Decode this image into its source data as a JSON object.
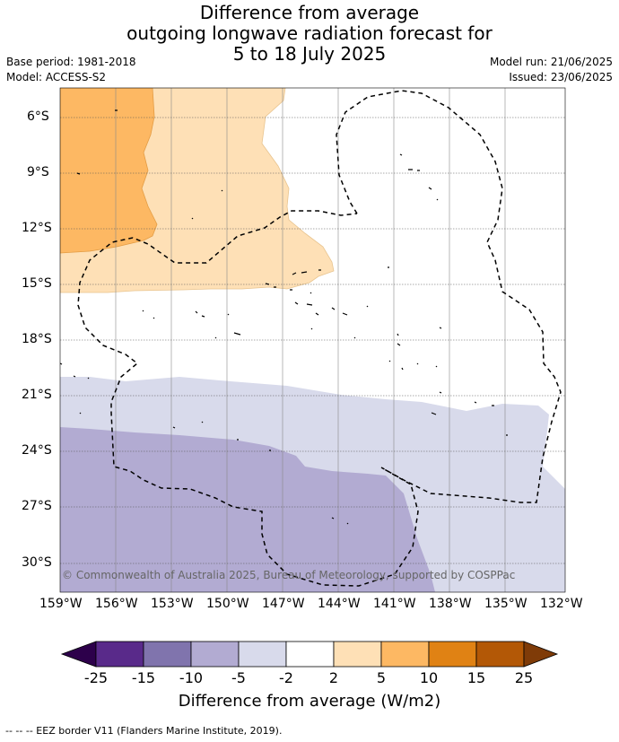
{
  "title": {
    "line1": "Difference from average",
    "line2": "outgoing longwave radiation forecast for",
    "line3": "5 to 18 July 2025"
  },
  "meta": {
    "base_period": "Base period: 1981-2018",
    "model": "Model: ACCESS-S2",
    "model_run": "Model run: 21/06/2025",
    "issued": "Issued: 23/06/2025"
  },
  "map": {
    "lat_labels": [
      "6°S",
      "9°S",
      "12°S",
      "15°S",
      "18°S",
      "21°S",
      "24°S",
      "27°S",
      "30°S"
    ],
    "lon_labels": [
      "159°W",
      "156°W",
      "153°W",
      "150°W",
      "147°W",
      "144°W",
      "141°W",
      "138°W",
      "135°W",
      "132°W"
    ],
    "copyright": "© Commonwealth of Australia 2025, Bureau of Meteorology, supported by COSPPac"
  },
  "colorbar": {
    "labels": [
      "-25",
      "-15",
      "-10",
      "-5",
      "-2",
      "2",
      "5",
      "10",
      "15",
      "25"
    ],
    "colors": [
      "#592a8a",
      "#8074ad",
      "#b2abd2",
      "#d8daeb",
      "#ffffff",
      "#fee0b6",
      "#fdb863",
      "#e08214",
      "#b35806"
    ],
    "low_color": "#2d004b",
    "high_color": "#7f3b08",
    "title": "Difference from average (W/m2)"
  },
  "footer": "-- -- -- EEZ border V11 (Flanders Marine Institute, 2019)."
}
